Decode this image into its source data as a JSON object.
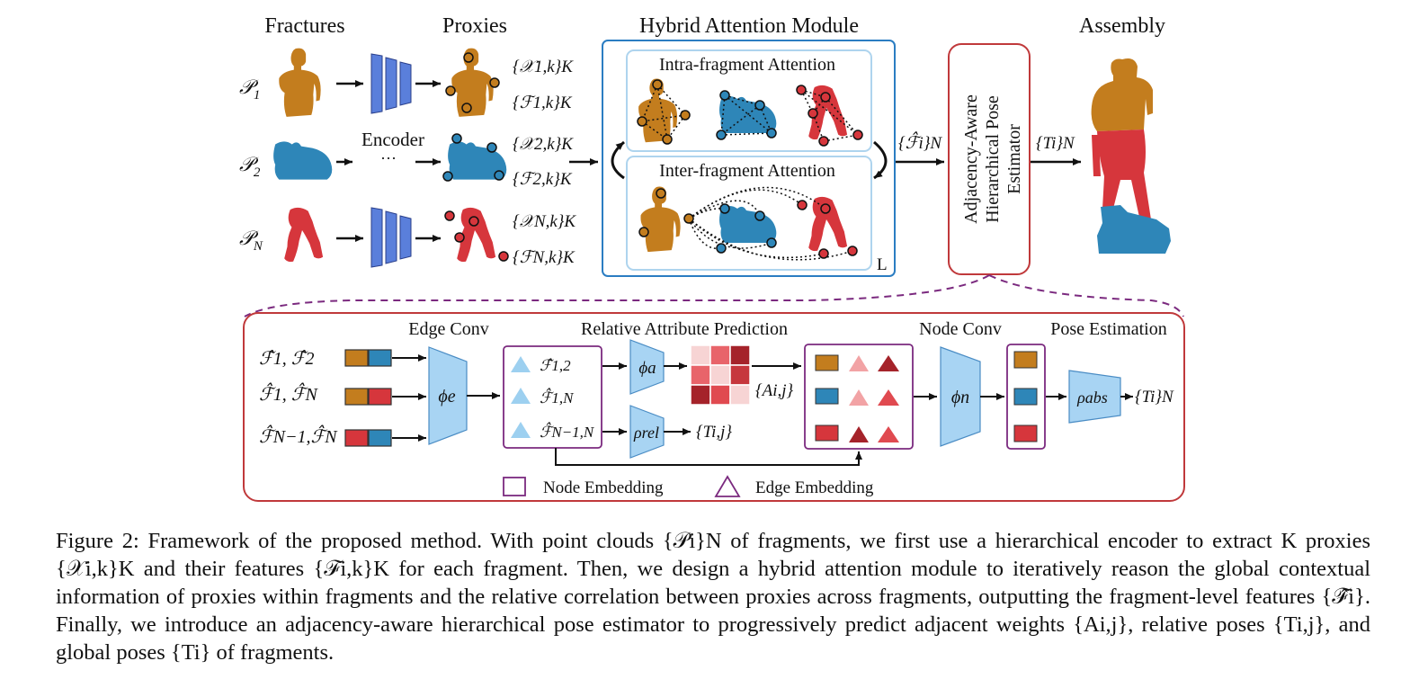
{
  "figure": {
    "headers": {
      "fractures": "Fractures",
      "proxies": "Proxies",
      "hybrid": "Hybrid Attention Module",
      "assembly": "Assembly"
    },
    "fragments": [
      {
        "label": "𝒫",
        "sub": "1",
        "color": "#c37d1e",
        "x_label": "{𝒳1,k}K",
        "f_label": "{ℱ1,k}K"
      },
      {
        "label": "𝒫",
        "sub": "2",
        "color": "#2e86b8",
        "x_label": "{𝒳2,k}K",
        "f_label": "{ℱ2,k}K"
      },
      {
        "label": "𝒫",
        "sub": "N",
        "color": "#d6363c",
        "x_label": "{𝒳N,k}K",
        "f_label": "{ℱN,k}K"
      }
    ],
    "encoder_label": "Encoder",
    "ellipsis": "···",
    "encoder_color": "#5a7fdb",
    "intra_title": "Intra-fragment Attention",
    "inter_title": "Inter-fragment Attention",
    "loop_label": "L",
    "fhat_out": "{ℱ̂i}N",
    "estimator_lines": [
      "Adjacency-Aware",
      "Hierarchical Pose",
      "Estimator"
    ],
    "ti_out": "{Ti}N",
    "bottom": {
      "edge_conv": "Edge Conv",
      "rel_pred": "Relative Attribute Prediction",
      "node_conv": "Node Conv",
      "pose_est": "Pose Estimation",
      "pairs": [
        "ℱ̂1, ℱ̂2",
        "ℱ̂1, ℱ̂N",
        "ℱ̂N−1,ℱ̂N"
      ],
      "edge_feats": [
        "ℱ̂1,2",
        "ℱ̂1,N",
        "ℱ̂N−1,N"
      ],
      "phi_e": "ϕe",
      "phi_a": "ϕa",
      "rho_rel": "ρrel",
      "phi_n": "ϕn",
      "rho_abs": "ρabs",
      "a_ij": "{Ai,j}",
      "t_ij": "{Ti,j}",
      "t_i": "{Ti}N",
      "legend_node": "Node Embedding",
      "legend_edge": "Edge Embedding",
      "light_blue": "#9dd0f0",
      "purple": "#7b2a7f",
      "dark_red": "#a5232a"
    }
  },
  "caption": {
    "label": "Figure 2:",
    "text": "Framework of the proposed method. With point clouds {𝒫i}N of fragments, we first use a hierarchical encoder to extract K proxies {𝒳i,k}K and their features {ℱi,k}K for each fragment. Then, we design a hybrid attention module to iteratively reason the global contextual information of proxies within fragments and the relative correlation between proxies across fragments, outputting the fragment-level features {ℱ̂i}. Finally, we introduce an adjacency-aware hierarchical pose estimator to progressively predict adjacent weights {Ai,j}, relative poses {Ti,j}, and global poses {Ti} of fragments."
  }
}
